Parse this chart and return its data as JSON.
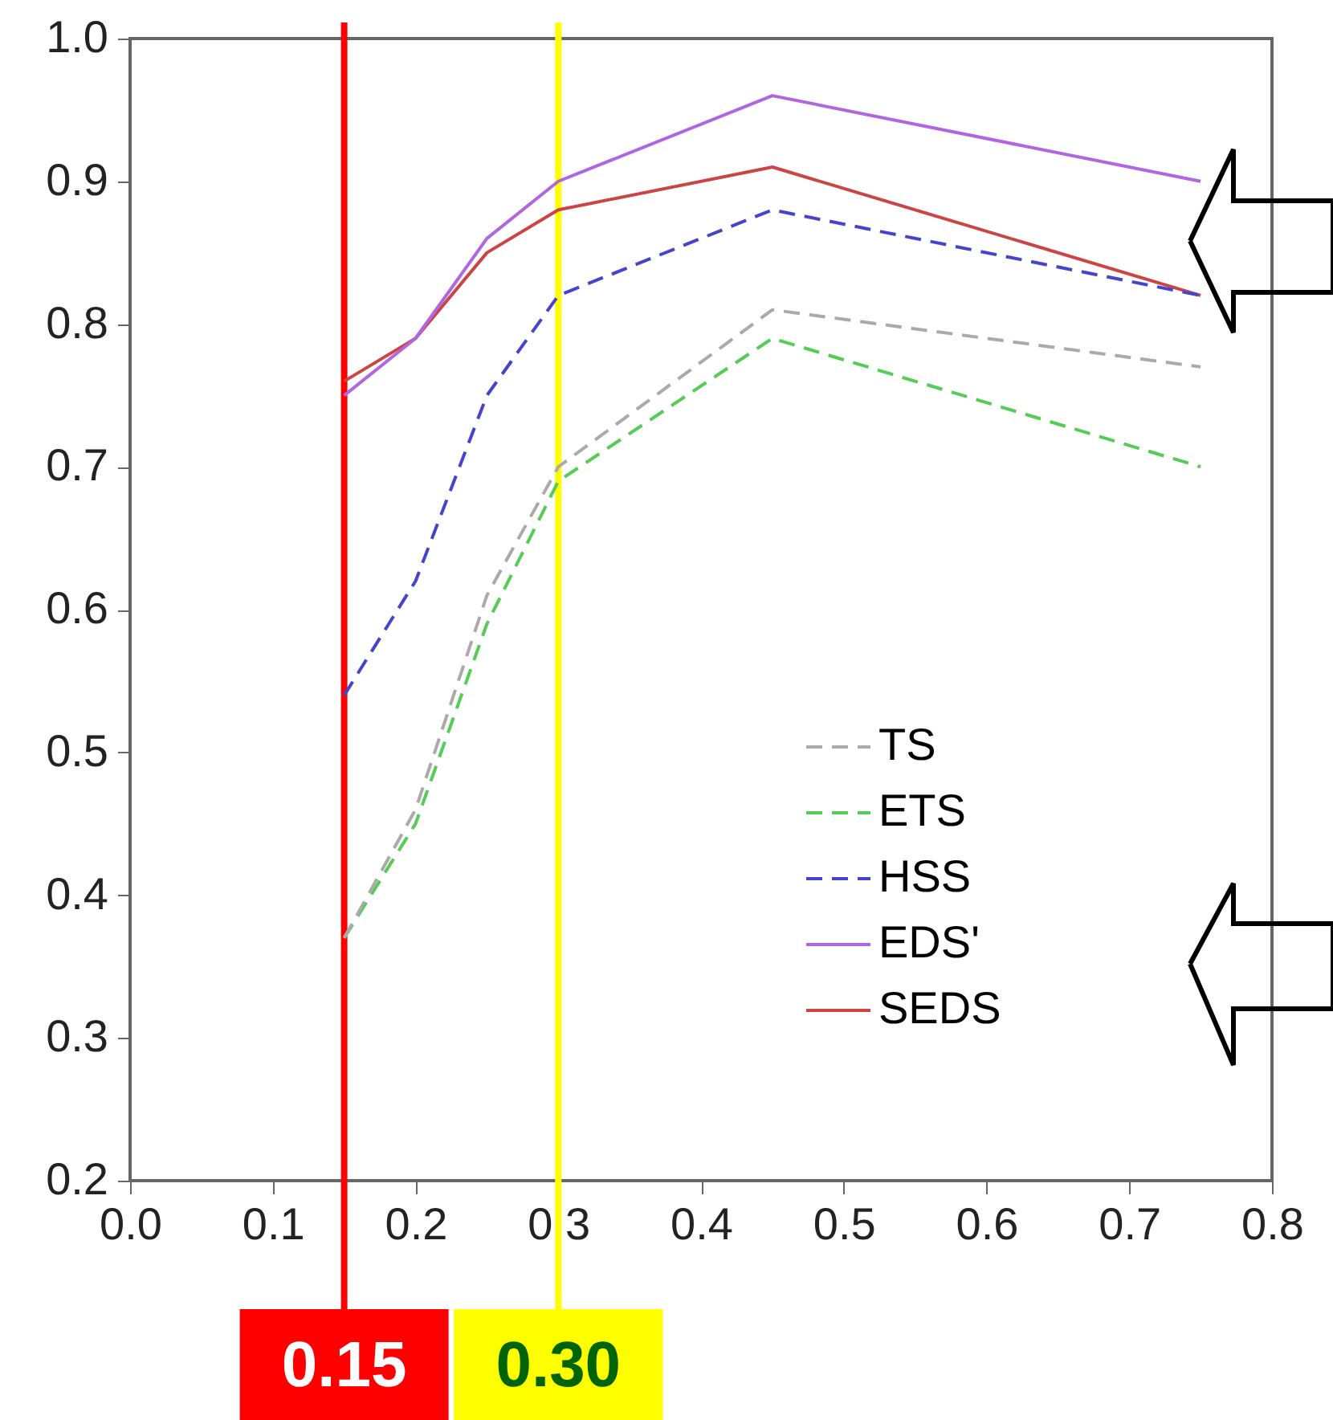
{
  "chart_data": {
    "type": "line",
    "x": [
      0.15,
      0.2,
      0.25,
      0.3,
      0.45,
      0.75
    ],
    "series": [
      {
        "name": "TS",
        "color": "#aaaaaa",
        "line_style": "dashed",
        "values": [
          0.37,
          0.46,
          0.61,
          0.7,
          0.81,
          0.77
        ]
      },
      {
        "name": "ETS",
        "color": "#55cc55",
        "line_style": "dashed",
        "values": [
          0.37,
          0.45,
          0.59,
          0.69,
          0.79,
          0.7
        ]
      },
      {
        "name": "HSS",
        "color": "#4444cc",
        "line_style": "dashed",
        "values": [
          0.54,
          0.62,
          0.75,
          0.82,
          0.88,
          0.82
        ]
      },
      {
        "name": "EDS'",
        "color": "#b066e0",
        "line_style": "solid",
        "values": [
          0.75,
          0.79,
          0.86,
          0.9,
          0.96,
          0.9
        ]
      },
      {
        "name": "SEDS",
        "color": "#cc4444",
        "line_style": "solid",
        "values": [
          0.76,
          0.79,
          0.85,
          0.88,
          0.91,
          0.82
        ]
      }
    ],
    "xlim": [
      0.0,
      0.8
    ],
    "xticks": [
      {
        "value": 0.0,
        "label": "0.0"
      },
      {
        "value": 0.1,
        "label": "0.1"
      },
      {
        "value": 0.2,
        "label": "0.2"
      },
      {
        "value": 0.3,
        "label": "0.3"
      },
      {
        "value": 0.4,
        "label": "0.4"
      },
      {
        "value": 0.5,
        "label": "0.5"
      },
      {
        "value": 0.6,
        "label": "0.6"
      },
      {
        "value": 0.7,
        "label": "0.7"
      },
      {
        "value": 0.8,
        "label": "0.8"
      }
    ],
    "ylim": [
      0.2,
      1.0
    ],
    "yticks": [
      0.2,
      0.3,
      0.4,
      0.5,
      0.6,
      0.7,
      0.8,
      0.9,
      {
        "value": 1.0,
        "label": "1.0"
      }
    ],
    "ref_lines": [
      {
        "axis": "x",
        "value": 0.15,
        "label": "0.15",
        "color": "#ff0000"
      },
      {
        "axis": "x",
        "value": 0.3,
        "label": "0.30",
        "color": "#ffff00"
      }
    ],
    "grid": false,
    "legend": "bottom right",
    "marker": "none"
  }
}
